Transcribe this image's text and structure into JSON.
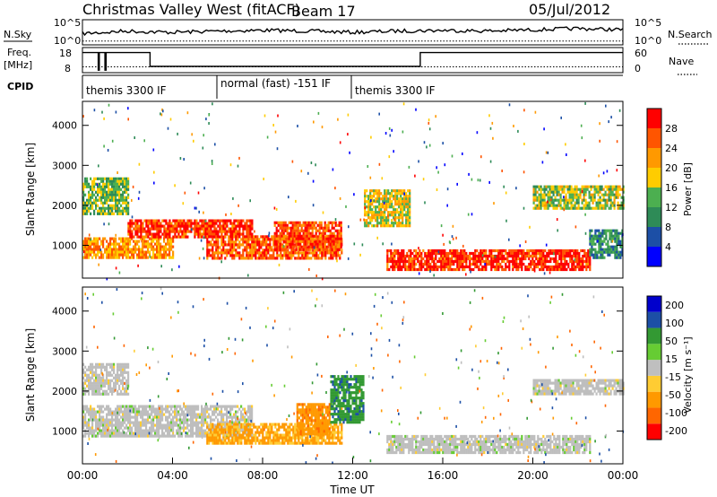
{
  "header": {
    "station": "Christmas Valley West (fitACF)",
    "beam": "Beam 17",
    "date": "05/Jul/2012"
  },
  "labels": {
    "nsky": "N.Sky",
    "nsearch": "N.Search",
    "freq_line1": "Freq.",
    "freq_line2": "[MHz]",
    "nave": "Nave",
    "cpid": "CPID",
    "ylabel": "Slant Range [km]",
    "xlabel": "Time UT",
    "power_label": "Power [dB]",
    "velocity_label": "Velocity [m s⁻¹]"
  },
  "colors": {
    "power_scale": [
      "#0000ff",
      "#1c4fa6",
      "#2e8b57",
      "#4caf50",
      "#ffcc00",
      "#ff9900",
      "#ff5500",
      "#ff0000"
    ],
    "velocity_scale": [
      "#ff0000",
      "#ff6600",
      "#ff9900",
      "#ffcc33",
      "#bfbfbf",
      "#66cc33",
      "#339933",
      "#1c4fa6",
      "#0000cc"
    ],
    "ground_scatter": "#bebebe"
  },
  "chart_data": [
    {
      "panel": "noise",
      "type": "line",
      "x_unit": "hours UT",
      "left_axis": {
        "label": "N.Sky",
        "ticks": [
          "10^5",
          "10^0"
        ]
      },
      "right_axis": {
        "label": "N.Search",
        "ticks": [
          "10^5",
          "10^0"
        ]
      },
      "series": [
        {
          "name": "N.Sky",
          "x": [
            0,
            1,
            2,
            3,
            4,
            6,
            8,
            10,
            12,
            14,
            16,
            18,
            20,
            22,
            24
          ],
          "y_frac": [
            0.55,
            0.5,
            0.45,
            0.48,
            0.5,
            0.45,
            0.42,
            0.45,
            0.5,
            0.45,
            0.42,
            0.45,
            0.4,
            0.35,
            0.4
          ]
        },
        {
          "name": "N.Search",
          "x": [
            0,
            24
          ],
          "y_frac": [
            0.15,
            0.15
          ]
        }
      ]
    },
    {
      "panel": "frequency",
      "type": "line",
      "x_unit": "hours UT",
      "left_axis": {
        "label": "Freq. [MHz]",
        "ticks": [
          "18",
          "8"
        ]
      },
      "right_axis": {
        "label": "Nave",
        "ticks": [
          "60",
          "0"
        ]
      },
      "series": [
        {
          "name": "Freq",
          "x": [
            0,
            0.7,
            0.7,
            0.75,
            0.75,
            1.0,
            1.0,
            1.05,
            1.05,
            3.0,
            3.0,
            15.0,
            15.0,
            24
          ],
          "y": [
            16,
            16,
            9,
            9,
            16,
            16,
            9,
            9,
            16,
            16,
            10.5,
            10.5,
            16,
            16
          ]
        },
        {
          "name": "Nave",
          "x": [
            0,
            24
          ],
          "y": [
            14,
            14
          ]
        }
      ]
    },
    {
      "panel": "cpid",
      "type": "table",
      "segments": [
        {
          "start": 0,
          "end": 6,
          "label": "themis 3300 IF"
        },
        {
          "start": 6,
          "end": 12,
          "label": "normal (fast) -151 IF"
        },
        {
          "start": 12,
          "end": 24,
          "label": "themis 3300 IF"
        }
      ]
    },
    {
      "panel": "power",
      "type": "heatmap",
      "xlabel": "",
      "ylabel": "Slant Range [km]",
      "xlim": [
        0,
        24
      ],
      "ylim": [
        180,
        4600
      ],
      "yticks": [
        1000,
        2000,
        3000,
        4000
      ],
      "colorbar": {
        "label": "Power [dB]",
        "range": [
          0,
          32
        ],
        "ticks": [
          4,
          8,
          12,
          16,
          20,
          24,
          28
        ]
      },
      "blobs": [
        {
          "t0": 0.0,
          "t1": 4.0,
          "r0": 700,
          "r1": 1200,
          "value": 22
        },
        {
          "t0": 2.0,
          "t1": 7.5,
          "r0": 1200,
          "r1": 1650,
          "value": 28
        },
        {
          "t0": 5.5,
          "t1": 11.5,
          "r0": 700,
          "r1": 1250,
          "value": 26
        },
        {
          "t0": 8.5,
          "t1": 11.5,
          "r0": 900,
          "r1": 1600,
          "value": 27
        },
        {
          "t0": 13.5,
          "t1": 22.5,
          "r0": 400,
          "r1": 900,
          "value": 29
        },
        {
          "t0": 0.0,
          "t1": 2.0,
          "r0": 1800,
          "r1": 2700,
          "value": 14
        },
        {
          "t0": 20.0,
          "t1": 24.0,
          "r0": 1900,
          "r1": 2500,
          "value": 16
        },
        {
          "t0": 12.5,
          "t1": 14.5,
          "r0": 1500,
          "r1": 2400,
          "value": 18
        },
        {
          "t0": 22.5,
          "t1": 24.0,
          "r0": 700,
          "r1": 1400,
          "value": 10
        }
      ]
    },
    {
      "panel": "velocity",
      "type": "heatmap",
      "xlabel": "Time UT",
      "ylabel": "Slant Range [km]",
      "xlim": [
        0,
        24
      ],
      "ylim": [
        180,
        4600
      ],
      "xticks": [
        "00:00",
        "04:00",
        "08:00",
        "12:00",
        "16:00",
        "20:00",
        "00:00"
      ],
      "yticks": [
        1000,
        2000,
        3000,
        4000
      ],
      "colorbar": {
        "label": "Velocity [m s⁻¹]",
        "ticks": [
          200,
          100,
          50,
          15,
          -15,
          -50,
          -100,
          -200
        ]
      },
      "blobs": [
        {
          "t0": 0.0,
          "t1": 7.5,
          "r0": 900,
          "r1": 1650,
          "value": 0
        },
        {
          "t0": 5.5,
          "t1": 11.5,
          "r0": 700,
          "r1": 1200,
          "value": -60
        },
        {
          "t0": 9.5,
          "t1": 11.0,
          "r0": 900,
          "r1": 1700,
          "value": -80
        },
        {
          "t0": 11.0,
          "t1": 12.5,
          "r0": 1200,
          "r1": 2400,
          "value": 80
        },
        {
          "t0": 13.5,
          "t1": 22.5,
          "r0": 450,
          "r1": 900,
          "value": 0
        },
        {
          "t0": 0.0,
          "t1": 2.0,
          "r0": 1900,
          "r1": 2700,
          "value": 0
        },
        {
          "t0": 20.0,
          "t1": 24.0,
          "r0": 1900,
          "r1": 2300,
          "value": 0
        }
      ]
    }
  ]
}
